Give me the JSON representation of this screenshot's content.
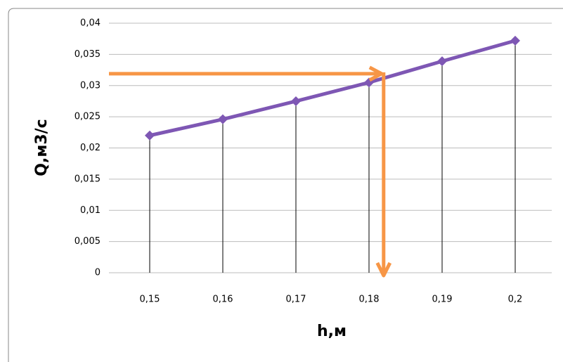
{
  "chart_data": {
    "type": "line",
    "x_label": "h,м",
    "y_label": "Q,м3/с",
    "x": [
      0.15,
      0.16,
      0.17,
      0.18,
      0.19,
      0.2
    ],
    "series": [
      {
        "color": "#7e57b4",
        "values": [
          0.022,
          0.0246,
          0.0275,
          0.0305,
          0.0339,
          0.0372
        ]
      }
    ],
    "xlim": [
      0.145,
      0.205
    ],
    "xticks": [
      {
        "value": 0.15,
        "label": "0,15"
      },
      {
        "value": 0.16,
        "label": "0,16"
      },
      {
        "value": 0.17,
        "label": "0,17"
      },
      {
        "value": 0.18,
        "label": "0,18"
      },
      {
        "value": 0.19,
        "label": "0,19"
      },
      {
        "value": 0.2,
        "label": "0,2"
      }
    ],
    "ylim": [
      0,
      0.04
    ],
    "yticks": [
      0,
      {
        "value": 0.005,
        "label": "0,005"
      },
      {
        "value": 0.01,
        "label": "0,01"
      },
      {
        "value": 0.015,
        "label": "0,015"
      },
      {
        "value": 0.02,
        "label": "0,02"
      },
      {
        "value": 0.025,
        "label": "0,025"
      },
      {
        "value": 0.03,
        "label": "0,03"
      },
      {
        "value": 0.035,
        "label": "0,035"
      },
      {
        "value": 0.04,
        "label": "0,04"
      }
    ],
    "grid": true,
    "drop_lines": true,
    "arrow": {
      "x": 0.182,
      "y": 0.0319,
      "color": "#f79646"
    }
  }
}
